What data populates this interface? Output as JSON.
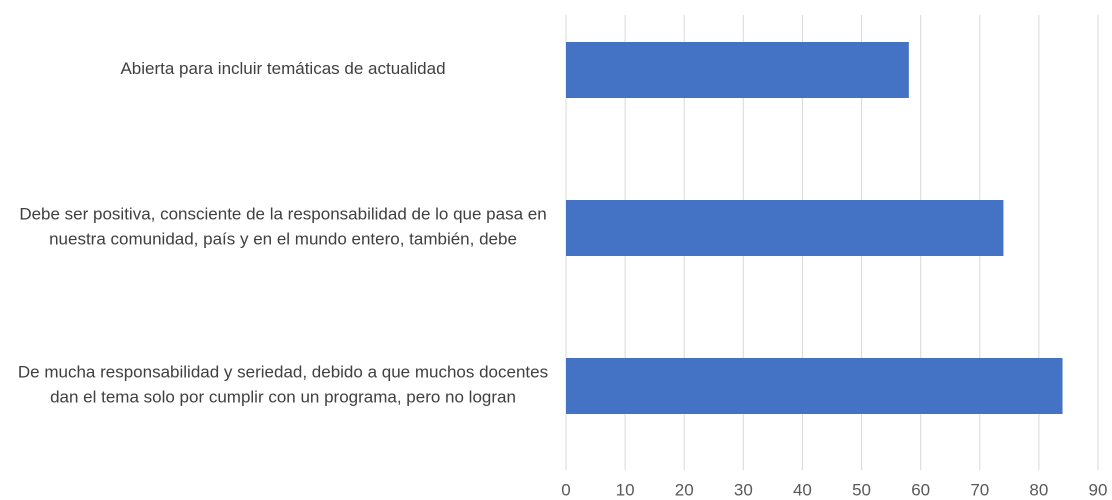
{
  "chart_data": {
    "type": "bar",
    "orientation": "horizontal",
    "categories": [
      "Abierta para incluir temáticas de actualidad",
      "Debe ser positiva, consciente de la responsabilidad de lo que pasa en nuestra comunidad, país y en el mundo entero, también, debe",
      "De mucha responsabilidad y seriedad, debido a que muchos docentes dan el tema solo por cumplir con un programa, pero no logran"
    ],
    "values": [
      58,
      74,
      84
    ],
    "color": "#4472c4",
    "xlim": [
      0,
      90
    ],
    "xticks": [
      0,
      10,
      20,
      30,
      40,
      50,
      60,
      70,
      80,
      90
    ],
    "grid": true
  }
}
